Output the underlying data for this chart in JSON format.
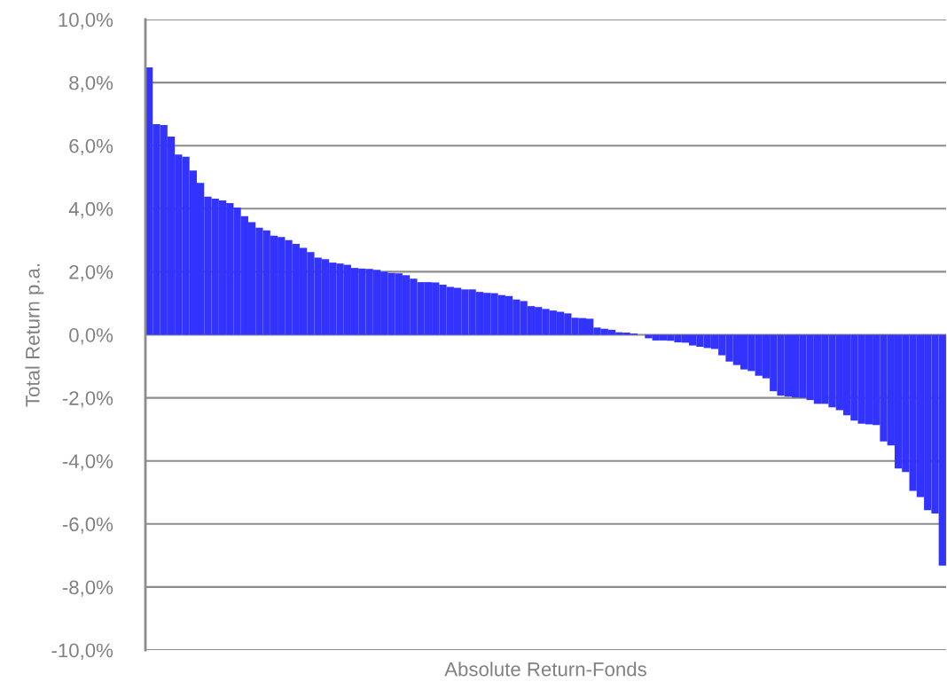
{
  "chart_data": {
    "type": "bar",
    "xlabel": "Absolute Return-Fonds",
    "ylabel": "Total Return p.a.",
    "categories": [
      null,
      null,
      null,
      null,
      null,
      null,
      null,
      null,
      null,
      null,
      null,
      null,
      null,
      null,
      null,
      null,
      null,
      null,
      null,
      null,
      null,
      null,
      null,
      null,
      null,
      null,
      null,
      null,
      null,
      null,
      null,
      null,
      null,
      null,
      null,
      null,
      null,
      null,
      null,
      null,
      null,
      null,
      null,
      null,
      null,
      null,
      null,
      null,
      null,
      null,
      null,
      null,
      null,
      null,
      null,
      null,
      null,
      null,
      null,
      null,
      null,
      null,
      null,
      null,
      null,
      null,
      null,
      null,
      null,
      null,
      null,
      null,
      null,
      null,
      null,
      null,
      null,
      null,
      null,
      null,
      null,
      null,
      null,
      null,
      null,
      null,
      null,
      null,
      null,
      null,
      null,
      null,
      null,
      null,
      null,
      null,
      null,
      null,
      null,
      null,
      null,
      null,
      null,
      null,
      null,
      null,
      null,
      null,
      null
    ],
    "values": [
      8.48,
      6.68,
      6.65,
      6.29,
      5.72,
      5.65,
      5.21,
      4.82,
      4.38,
      4.32,
      4.26,
      4.18,
      4.04,
      3.76,
      3.57,
      3.4,
      3.31,
      3.14,
      3.1,
      3.0,
      2.88,
      2.76,
      2.62,
      2.45,
      2.4,
      2.29,
      2.26,
      2.22,
      2.12,
      2.1,
      2.09,
      2.06,
      2.0,
      1.96,
      1.95,
      1.89,
      1.78,
      1.67,
      1.67,
      1.66,
      1.59,
      1.52,
      1.49,
      1.44,
      1.44,
      1.36,
      1.33,
      1.32,
      1.26,
      1.23,
      1.12,
      1.07,
      0.91,
      0.88,
      0.82,
      0.77,
      0.73,
      0.68,
      0.54,
      0.53,
      0.51,
      0.23,
      0.19,
      0.16,
      0.08,
      0.07,
      0.04,
      null,
      -0.11,
      -0.18,
      -0.18,
      -0.19,
      -0.24,
      -0.25,
      -0.34,
      -0.38,
      -0.42,
      -0.45,
      -0.65,
      -0.85,
      -0.96,
      -1.1,
      -1.15,
      -1.3,
      -1.38,
      -1.79,
      -1.93,
      -1.96,
      -1.99,
      -2.0,
      -2.07,
      -2.19,
      -2.19,
      -2.3,
      -2.39,
      -2.55,
      -2.72,
      -2.82,
      -2.84,
      -2.86,
      -3.38,
      -3.51,
      -4.24,
      -4.35,
      -4.95,
      -5.15,
      -5.56,
      -5.67,
      -7.32
    ],
    "color": "#3333ff",
    "ylim": [
      -10,
      10
    ],
    "yticks": [
      {
        "value": -10,
        "label": "-10,0%"
      },
      {
        "value": -8,
        "label": "-8,0%"
      },
      {
        "value": -6,
        "label": "-6,0%"
      },
      {
        "value": -4,
        "label": "-4,0%"
      },
      {
        "value": -2,
        "label": "-2,0%"
      },
      {
        "value": 0,
        "label": "0,0%"
      },
      {
        "value": 2,
        "label": "2,0%"
      },
      {
        "value": 4,
        "label": "4,0%"
      },
      {
        "value": 6,
        "label": "6,0%"
      },
      {
        "value": 8,
        "label": "8,0%"
      },
      {
        "value": 10,
        "label": "10,0%"
      }
    ],
    "grid": "y",
    "legend": false
  }
}
